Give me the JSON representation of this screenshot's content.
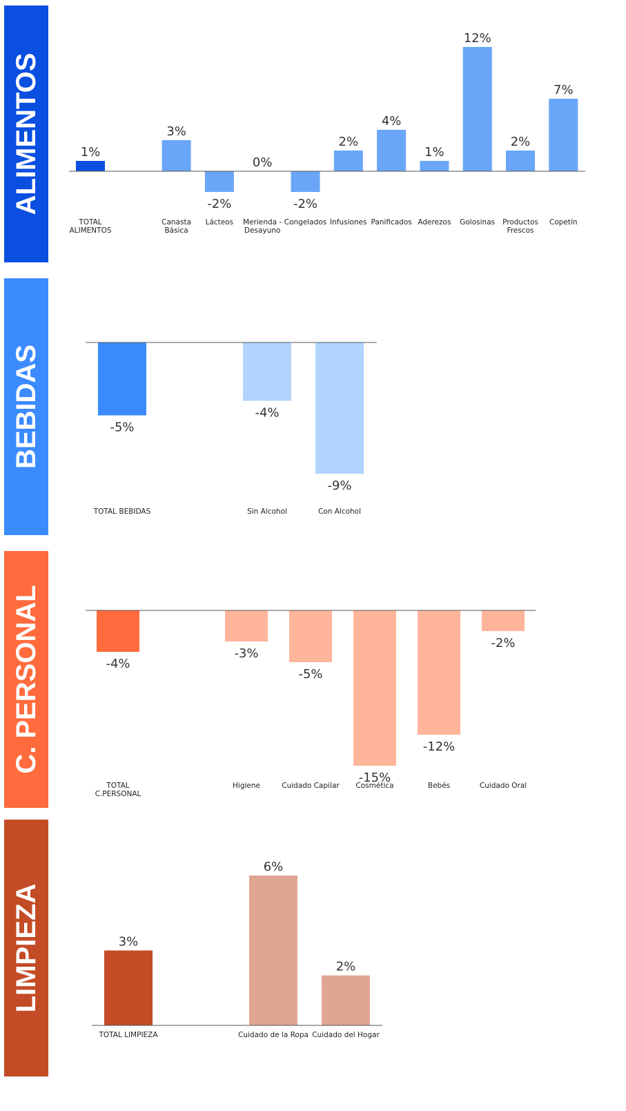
{
  "chart_data": [
    {
      "type": "bar",
      "title": "ALIMENTOS",
      "panel_color": "#0a4fe0",
      "categories": [
        "TOTAL ALIMENTOS",
        null,
        "Canasta Básica",
        "Lácteos",
        "Merienda - Desayuno",
        "Congelados",
        "Infusiones",
        "Panificados",
        "Aderezos",
        "Golosinas",
        "Productos Frescos",
        "Copetín"
      ],
      "values": [
        1,
        null,
        3,
        -2,
        0,
        -2,
        2,
        4,
        1,
        12,
        2,
        7
      ],
      "value_labels": [
        "1%",
        null,
        "3%",
        "-2%",
        "0%",
        "-2%",
        "2%",
        "4%",
        "1%",
        "12%",
        "2%",
        "7%"
      ],
      "colors": [
        "#0a4fe0",
        null,
        "#6aa6f8",
        "#6aa6f8",
        "#6aa6f8",
        "#6aa6f8",
        "#6aa6f8",
        "#6aa6f8",
        "#6aa6f8",
        "#6aa6f8",
        "#6aa6f8",
        "#6aa6f8"
      ],
      "ylim": [
        -2,
        12
      ]
    },
    {
      "type": "bar",
      "title": "BEBIDAS",
      "panel_color": "#3b8bff",
      "categories": [
        "TOTAL BEBIDAS",
        null,
        "Sin Alcohol",
        "Con Alcohol"
      ],
      "values": [
        -5,
        null,
        -4,
        -9
      ],
      "value_labels": [
        "-5%",
        null,
        "-4%",
        "-9%"
      ],
      "colors": [
        "#3b8bff",
        null,
        "#b0d4fd",
        "#b0d4fd"
      ],
      "ylim": [
        -9,
        0
      ]
    },
    {
      "type": "bar",
      "title": "C. PERSONAL",
      "panel_color": "#ff6b3d",
      "categories": [
        "TOTAL C.PERSONAL",
        null,
        "Higiene",
        "Cuidado Capilar",
        "Cosmética",
        "Bebés",
        "Cuidado Oral"
      ],
      "values": [
        -4,
        null,
        -3,
        -5,
        -15,
        -12,
        -2
      ],
      "value_labels": [
        "-4%",
        null,
        "-3%",
        "-5%",
        "-15%",
        "-12%",
        "-2%"
      ],
      "colors": [
        "#ff6b3d",
        null,
        "#ffb59a",
        "#ffb59a",
        "#ffb59a",
        "#ffb59a",
        "#ffb59a"
      ],
      "ylim": [
        -15,
        0
      ]
    },
    {
      "type": "bar",
      "title": "LIMPIEZA",
      "panel_color": "#c34c27",
      "categories": [
        "TOTAL LIMPIEZA",
        null,
        "Cuidado de la Ropa",
        "Cuidado del Hogar"
      ],
      "values": [
        3,
        null,
        6,
        2
      ],
      "value_labels": [
        "3%",
        null,
        "6%",
        "2%"
      ],
      "colors": [
        "#c34c27",
        null,
        "#e0a693",
        "#e0a693"
      ],
      "ylim": [
        0,
        6
      ]
    }
  ]
}
